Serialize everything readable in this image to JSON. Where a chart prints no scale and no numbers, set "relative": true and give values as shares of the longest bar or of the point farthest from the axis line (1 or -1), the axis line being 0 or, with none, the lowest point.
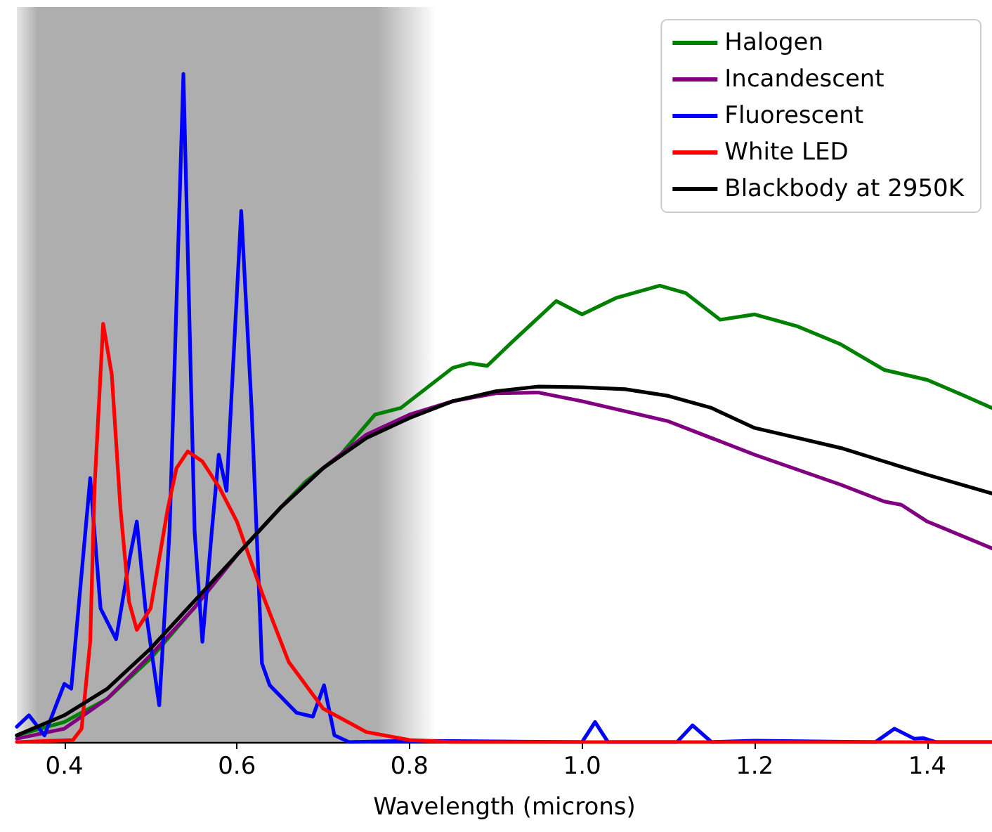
{
  "chart_data": {
    "type": "line",
    "relative": true,
    "xlabel": "Wavelength (microns)",
    "xlim": [
      0.345,
      1.475
    ],
    "xticks": [
      0.4,
      0.6,
      0.8,
      {
        "value": 1.0,
        "label": "1.0"
      },
      1.2,
      1.4
    ],
    "legend": "top right",
    "grid": false,
    "line_style": "solid",
    "marker": "none",
    "bands": [
      {
        "axis": "x",
        "from": 0.345,
        "to": 0.83,
        "color": "#aeaeae"
      }
    ],
    "series": [
      {
        "name": "Halogen",
        "color": "#008000",
        "x": [
          0.345,
          0.4,
          0.45,
          0.5,
          0.55,
          0.6,
          0.65,
          0.68,
          0.7,
          0.72,
          0.76,
          0.79,
          0.82,
          0.85,
          0.87,
          0.89,
          0.92,
          0.97,
          1.0,
          1.04,
          1.09,
          1.12,
          1.16,
          1.2,
          1.25,
          1.3,
          1.35,
          1.4,
          1.44,
          1.475
        ],
        "values": [
          0.01,
          0.03,
          0.065,
          0.125,
          0.2,
          0.28,
          0.35,
          0.39,
          0.41,
          0.43,
          0.49,
          0.5,
          0.53,
          0.56,
          0.567,
          0.563,
          0.6,
          0.66,
          0.64,
          0.665,
          0.683,
          0.672,
          0.632,
          0.64,
          0.622,
          0.595,
          0.557,
          0.542,
          0.52,
          0.5
        ]
      },
      {
        "name": "Incandescent",
        "color": "#800080",
        "x": [
          0.345,
          0.4,
          0.45,
          0.5,
          0.55,
          0.6,
          0.65,
          0.7,
          0.75,
          0.8,
          0.85,
          0.9,
          0.95,
          1.0,
          1.1,
          1.2,
          1.3,
          1.35,
          1.37,
          1.4,
          1.475
        ],
        "values": [
          0.005,
          0.02,
          0.065,
          0.13,
          0.2,
          0.28,
          0.35,
          0.41,
          0.46,
          0.49,
          0.51,
          0.522,
          0.523,
          0.51,
          0.48,
          0.43,
          0.385,
          0.36,
          0.355,
          0.33,
          0.29
        ]
      },
      {
        "name": "Fluorescent",
        "color": "#0000ff",
        "x": [
          0.345,
          0.359,
          0.377,
          0.4,
          0.408,
          0.43,
          0.442,
          0.46,
          0.476,
          0.484,
          0.494,
          0.51,
          0.522,
          0.538,
          0.551,
          0.56,
          0.571,
          0.579,
          0.588,
          0.605,
          0.617,
          0.629,
          0.638,
          0.669,
          0.688,
          0.701,
          0.713,
          0.73,
          0.8,
          1.0,
          1.015,
          1.03,
          1.11,
          1.128,
          1.15,
          1.2,
          1.34,
          1.362,
          1.385,
          1.395,
          1.41,
          1.475
        ],
        "values": [
          0.023,
          0.04,
          0.01,
          0.087,
          0.08,
          0.395,
          0.2,
          0.154,
          0.277,
          0.33,
          0.2,
          0.055,
          0.317,
          1,
          0.315,
          0.15,
          0.317,
          0.43,
          0.376,
          0.795,
          0.5,
          0.118,
          0.085,
          0.044,
          0.038,
          0.085,
          0.01,
          0,
          0.002,
          0,
          0.03,
          0,
          0,
          0.025,
          0,
          0.002,
          0,
          0.02,
          0.005,
          0.006,
          0,
          0
        ]
      },
      {
        "name": "White LED",
        "color": "#ff0000",
        "x": [
          0.345,
          0.41,
          0.42,
          0.43,
          0.435,
          0.445,
          0.455,
          0.465,
          0.475,
          0.484,
          0.5,
          0.52,
          0.53,
          0.543,
          0.56,
          0.58,
          0.6,
          0.63,
          0.66,
          0.7,
          0.75,
          0.8,
          0.85,
          1.475
        ],
        "values": [
          0,
          0.003,
          0.02,
          0.15,
          0.38,
          0.626,
          0.55,
          0.35,
          0.21,
          0.168,
          0.2,
          0.35,
          0.41,
          0.435,
          0.42,
          0.38,
          0.33,
          0.22,
          0.12,
          0.05,
          0.015,
          0.003,
          0,
          0
        ]
      },
      {
        "name": "Blackbody at 2950K",
        "color": "#000000",
        "x": [
          0.345,
          0.4,
          0.45,
          0.5,
          0.55,
          0.6,
          0.65,
          0.7,
          0.75,
          0.8,
          0.85,
          0.9,
          0.95,
          1.0,
          1.05,
          1.1,
          1.15,
          1.2,
          1.25,
          1.3,
          1.35,
          1.4,
          1.475
        ],
        "values": [
          0.01,
          0.04,
          0.08,
          0.14,
          0.21,
          0.28,
          0.35,
          0.41,
          0.455,
          0.485,
          0.51,
          0.525,
          0.532,
          0.531,
          0.528,
          0.518,
          0.5,
          0.47,
          0.455,
          0.44,
          0.42,
          0.4,
          0.372
        ]
      }
    ]
  }
}
